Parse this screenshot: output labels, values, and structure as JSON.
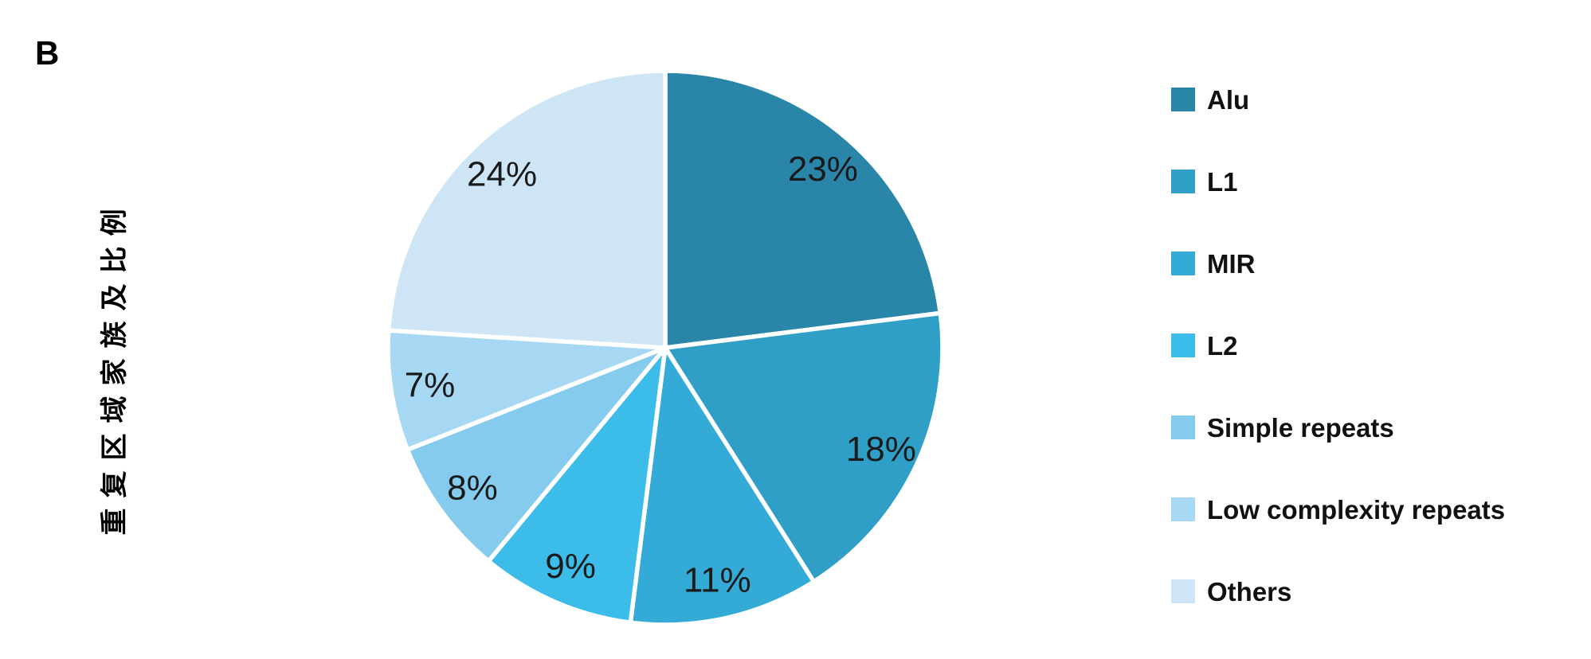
{
  "panel": {
    "label": "B"
  },
  "axis": {
    "title": "重复区域家族及比例"
  },
  "chart_data": {
    "type": "pie",
    "title": "",
    "start_angle_deg": 0,
    "direction": "clockwise",
    "legend_position": "right",
    "grid": false,
    "stroke_color": "#ffffff",
    "label_color": "#1a1a1a",
    "value_suffix": "%",
    "series": [
      {
        "label": "Alu",
        "value": 23,
        "color": "#2A86A8"
      },
      {
        "label": "L1",
        "value": 18,
        "color": "#2F9FC7"
      },
      {
        "label": "MIR",
        "value": 11,
        "color": "#34ABD7"
      },
      {
        "label": "L2",
        "value": 9,
        "color": "#3CBDE9"
      },
      {
        "label": "Simple repeats",
        "value": 8,
        "color": "#84CBEE"
      },
      {
        "label": "Low complexity repeats",
        "value": 7,
        "color": "#A7D8F3"
      },
      {
        "label": "Others",
        "value": 24,
        "color": "#CDE5F4"
      }
    ]
  }
}
